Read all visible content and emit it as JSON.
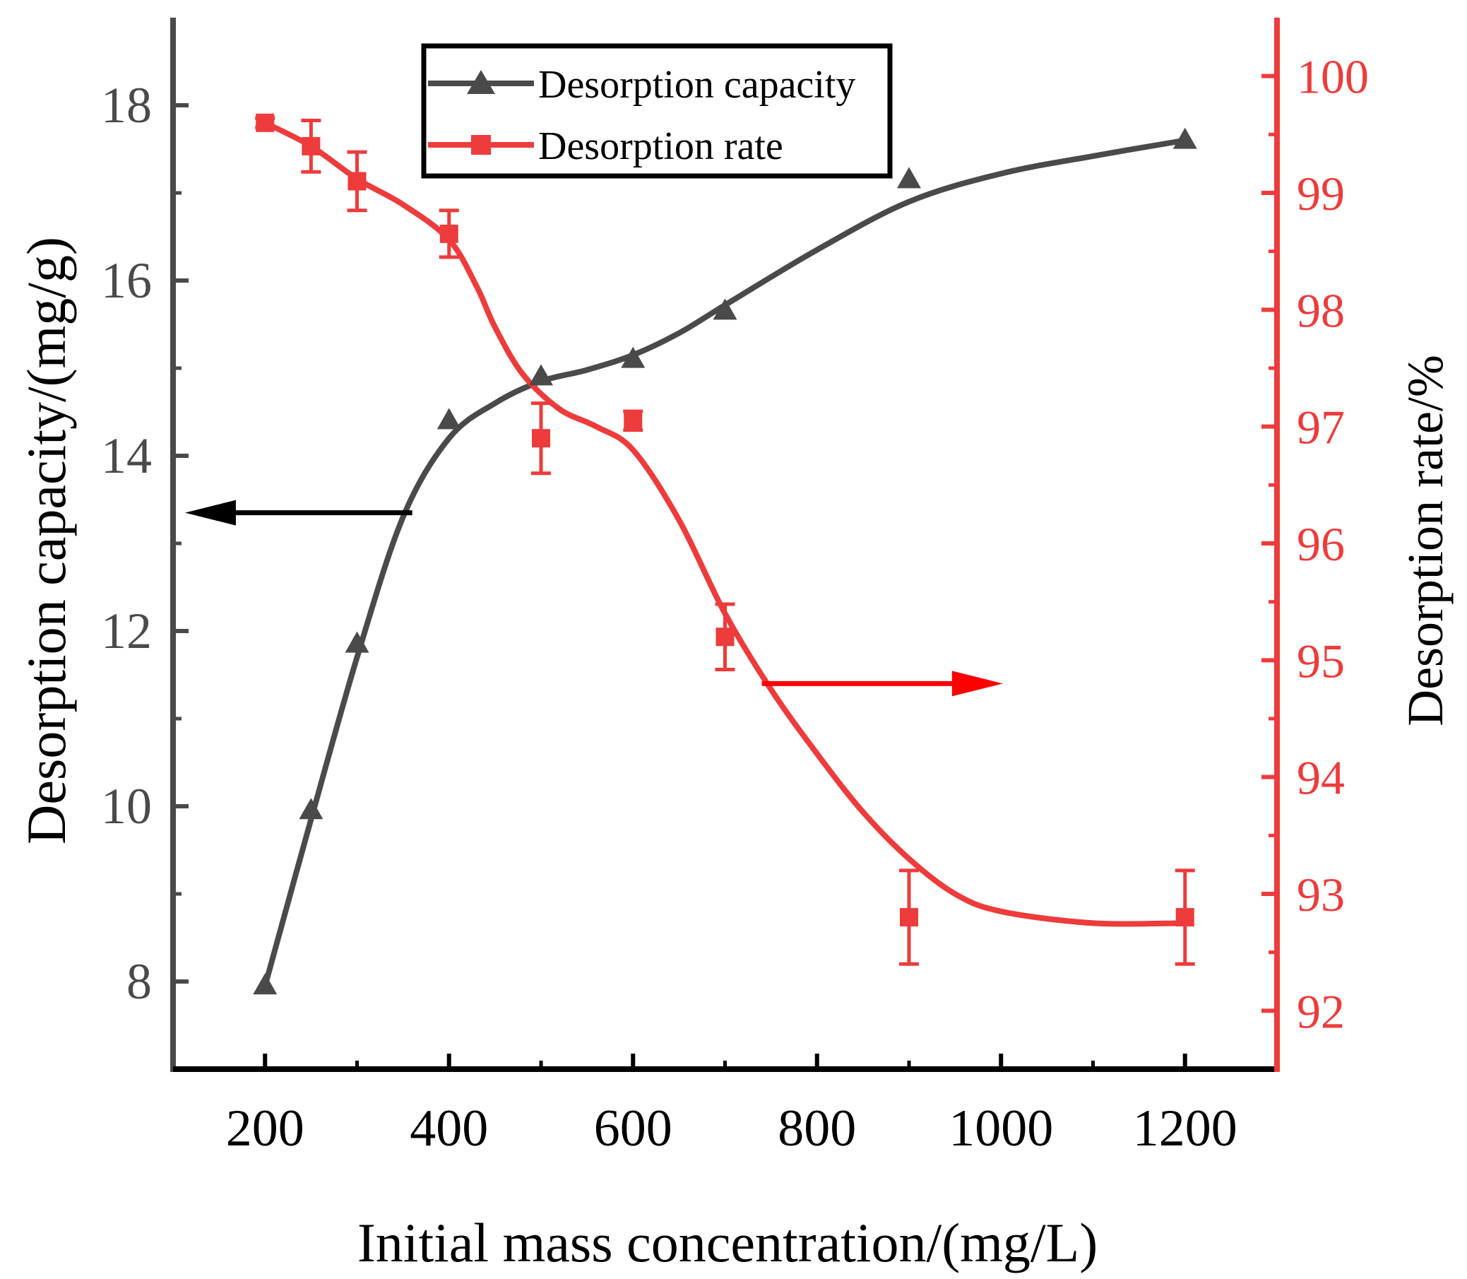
{
  "chart_data": {
    "type": "line",
    "title": "",
    "xlabel": "Initial mass concentration/(mg/L)",
    "ylabel_left": "Desorption capacity/(mg/g)",
    "ylabel_right": "Desorption rate/%",
    "xlim": [
      100,
      1300
    ],
    "ylim_left": [
      7,
      19
    ],
    "ylim_right": [
      91.5,
      100.5
    ],
    "x_ticks": [
      200,
      400,
      600,
      800,
      1000,
      1200
    ],
    "x_tick_labels": [
      "200",
      "400",
      "600",
      "800",
      "1000",
      "1200"
    ],
    "y_left_ticks": [
      8,
      10,
      12,
      14,
      16,
      18
    ],
    "y_left_tick_labels": [
      "8",
      "10",
      "12",
      "14",
      "16",
      "18"
    ],
    "y_right_ticks": [
      92,
      93,
      94,
      95,
      96,
      97,
      98,
      99,
      100
    ],
    "y_right_tick_labels": [
      "92",
      "93",
      "94",
      "95",
      "96",
      "97",
      "98",
      "99",
      "100"
    ],
    "legend_position": "top-center",
    "x": [
      200,
      250,
      300,
      400,
      500,
      600,
      700,
      900,
      1200
    ],
    "series": [
      {
        "name": "Desorption capacity",
        "axis": "left",
        "color": "#4a4a4a",
        "marker": "triangle",
        "values": [
          7.95,
          9.95,
          11.85,
          14.4,
          14.9,
          15.1,
          15.65,
          17.15,
          17.6
        ],
        "curve": [
          [
            200,
            7.95
          ],
          [
            250,
            9.85
          ],
          [
            300,
            11.7
          ],
          [
            350,
            13.3
          ],
          [
            400,
            14.2
          ],
          [
            450,
            14.6
          ],
          [
            500,
            14.85
          ],
          [
            550,
            14.98
          ],
          [
            600,
            15.15
          ],
          [
            650,
            15.4
          ],
          [
            700,
            15.72
          ],
          [
            800,
            16.35
          ],
          [
            900,
            16.9
          ],
          [
            1000,
            17.22
          ],
          [
            1100,
            17.42
          ],
          [
            1200,
            17.6
          ]
        ]
      },
      {
        "name": "Desorption rate",
        "axis": "right",
        "color": "#ee3b3b",
        "marker": "square",
        "values": [
          99.6,
          99.4,
          99.1,
          98.65,
          96.9,
          97.05,
          95.2,
          92.8,
          92.8
        ],
        "errors": [
          0.04,
          0.22,
          0.25,
          0.2,
          0.3,
          0.08,
          0.28,
          0.4,
          0.4
        ],
        "curve": [
          [
            200,
            99.6
          ],
          [
            250,
            99.4
          ],
          [
            300,
            99.12
          ],
          [
            350,
            98.9
          ],
          [
            400,
            98.6
          ],
          [
            430,
            98.2
          ],
          [
            450,
            97.85
          ],
          [
            480,
            97.45
          ],
          [
            520,
            97.15
          ],
          [
            560,
            97.0
          ],
          [
            600,
            96.8
          ],
          [
            650,
            96.2
          ],
          [
            700,
            95.4
          ],
          [
            750,
            94.75
          ],
          [
            800,
            94.2
          ],
          [
            850,
            93.7
          ],
          [
            900,
            93.3
          ],
          [
            950,
            93.0
          ],
          [
            1000,
            92.85
          ],
          [
            1100,
            92.75
          ],
          [
            1200,
            92.75
          ]
        ]
      }
    ],
    "annotations": [
      {
        "type": "arrow",
        "direction": "left",
        "color": "#000000",
        "meaning": "points to left axis (Desorption capacity)"
      },
      {
        "type": "arrow",
        "direction": "right",
        "color": "#ff0000",
        "meaning": "points to right axis (Desorption rate)"
      }
    ]
  }
}
